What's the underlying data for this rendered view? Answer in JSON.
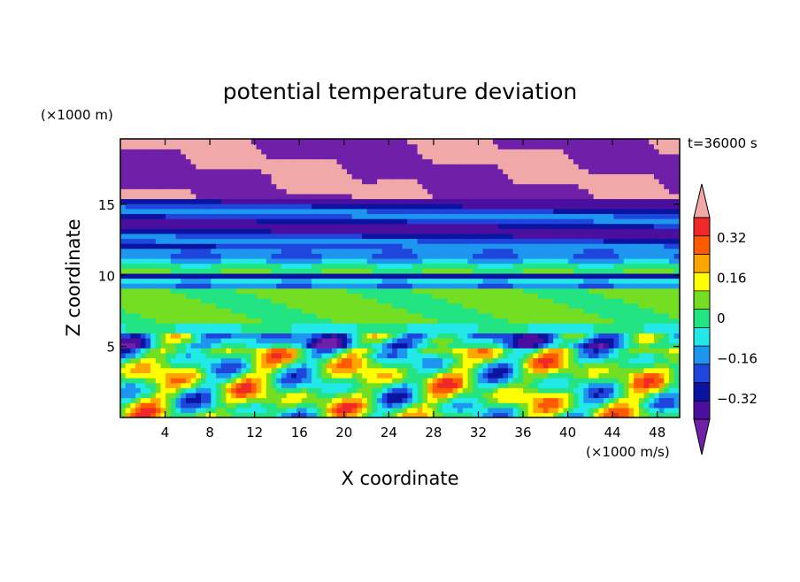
{
  "chart_data": {
    "type": "heatmap",
    "title": "potential temperature deviation",
    "xlabel": "X coordinate",
    "ylabel": "Z coordinate",
    "x_unit": "(×1000 m/s)",
    "y_unit": "(×1000 m)",
    "time_label": "t=36000 s",
    "xlim": [
      0,
      50
    ],
    "ylim": [
      0,
      19.6
    ],
    "x_ticks": [
      4,
      8,
      12,
      16,
      20,
      24,
      28,
      32,
      36,
      40,
      44,
      48
    ],
    "y_ticks": [
      5,
      10,
      15
    ],
    "colorbar": {
      "levels": [
        -0.48,
        -0.4,
        -0.32,
        -0.24,
        -0.16,
        -0.08,
        0,
        0.08,
        0.16,
        0.24,
        0.32,
        0.4,
        0.48
      ],
      "labels": [
        "−0.32",
        "−0.16",
        "0",
        "0.16",
        "0.32"
      ],
      "label_values": [
        -0.32,
        -0.16,
        0,
        0.16,
        0.32
      ],
      "colors": [
        "#7020A8",
        "#4B0FA0",
        "#0A14A0",
        "#1E46DC",
        "#1E96F0",
        "#22E8E8",
        "#22E482",
        "#74DE22",
        "#FFFF00",
        "#FFA500",
        "#FF5A00",
        "#F02828",
        "#F0A8A8"
      ],
      "extend": "both"
    }
  }
}
